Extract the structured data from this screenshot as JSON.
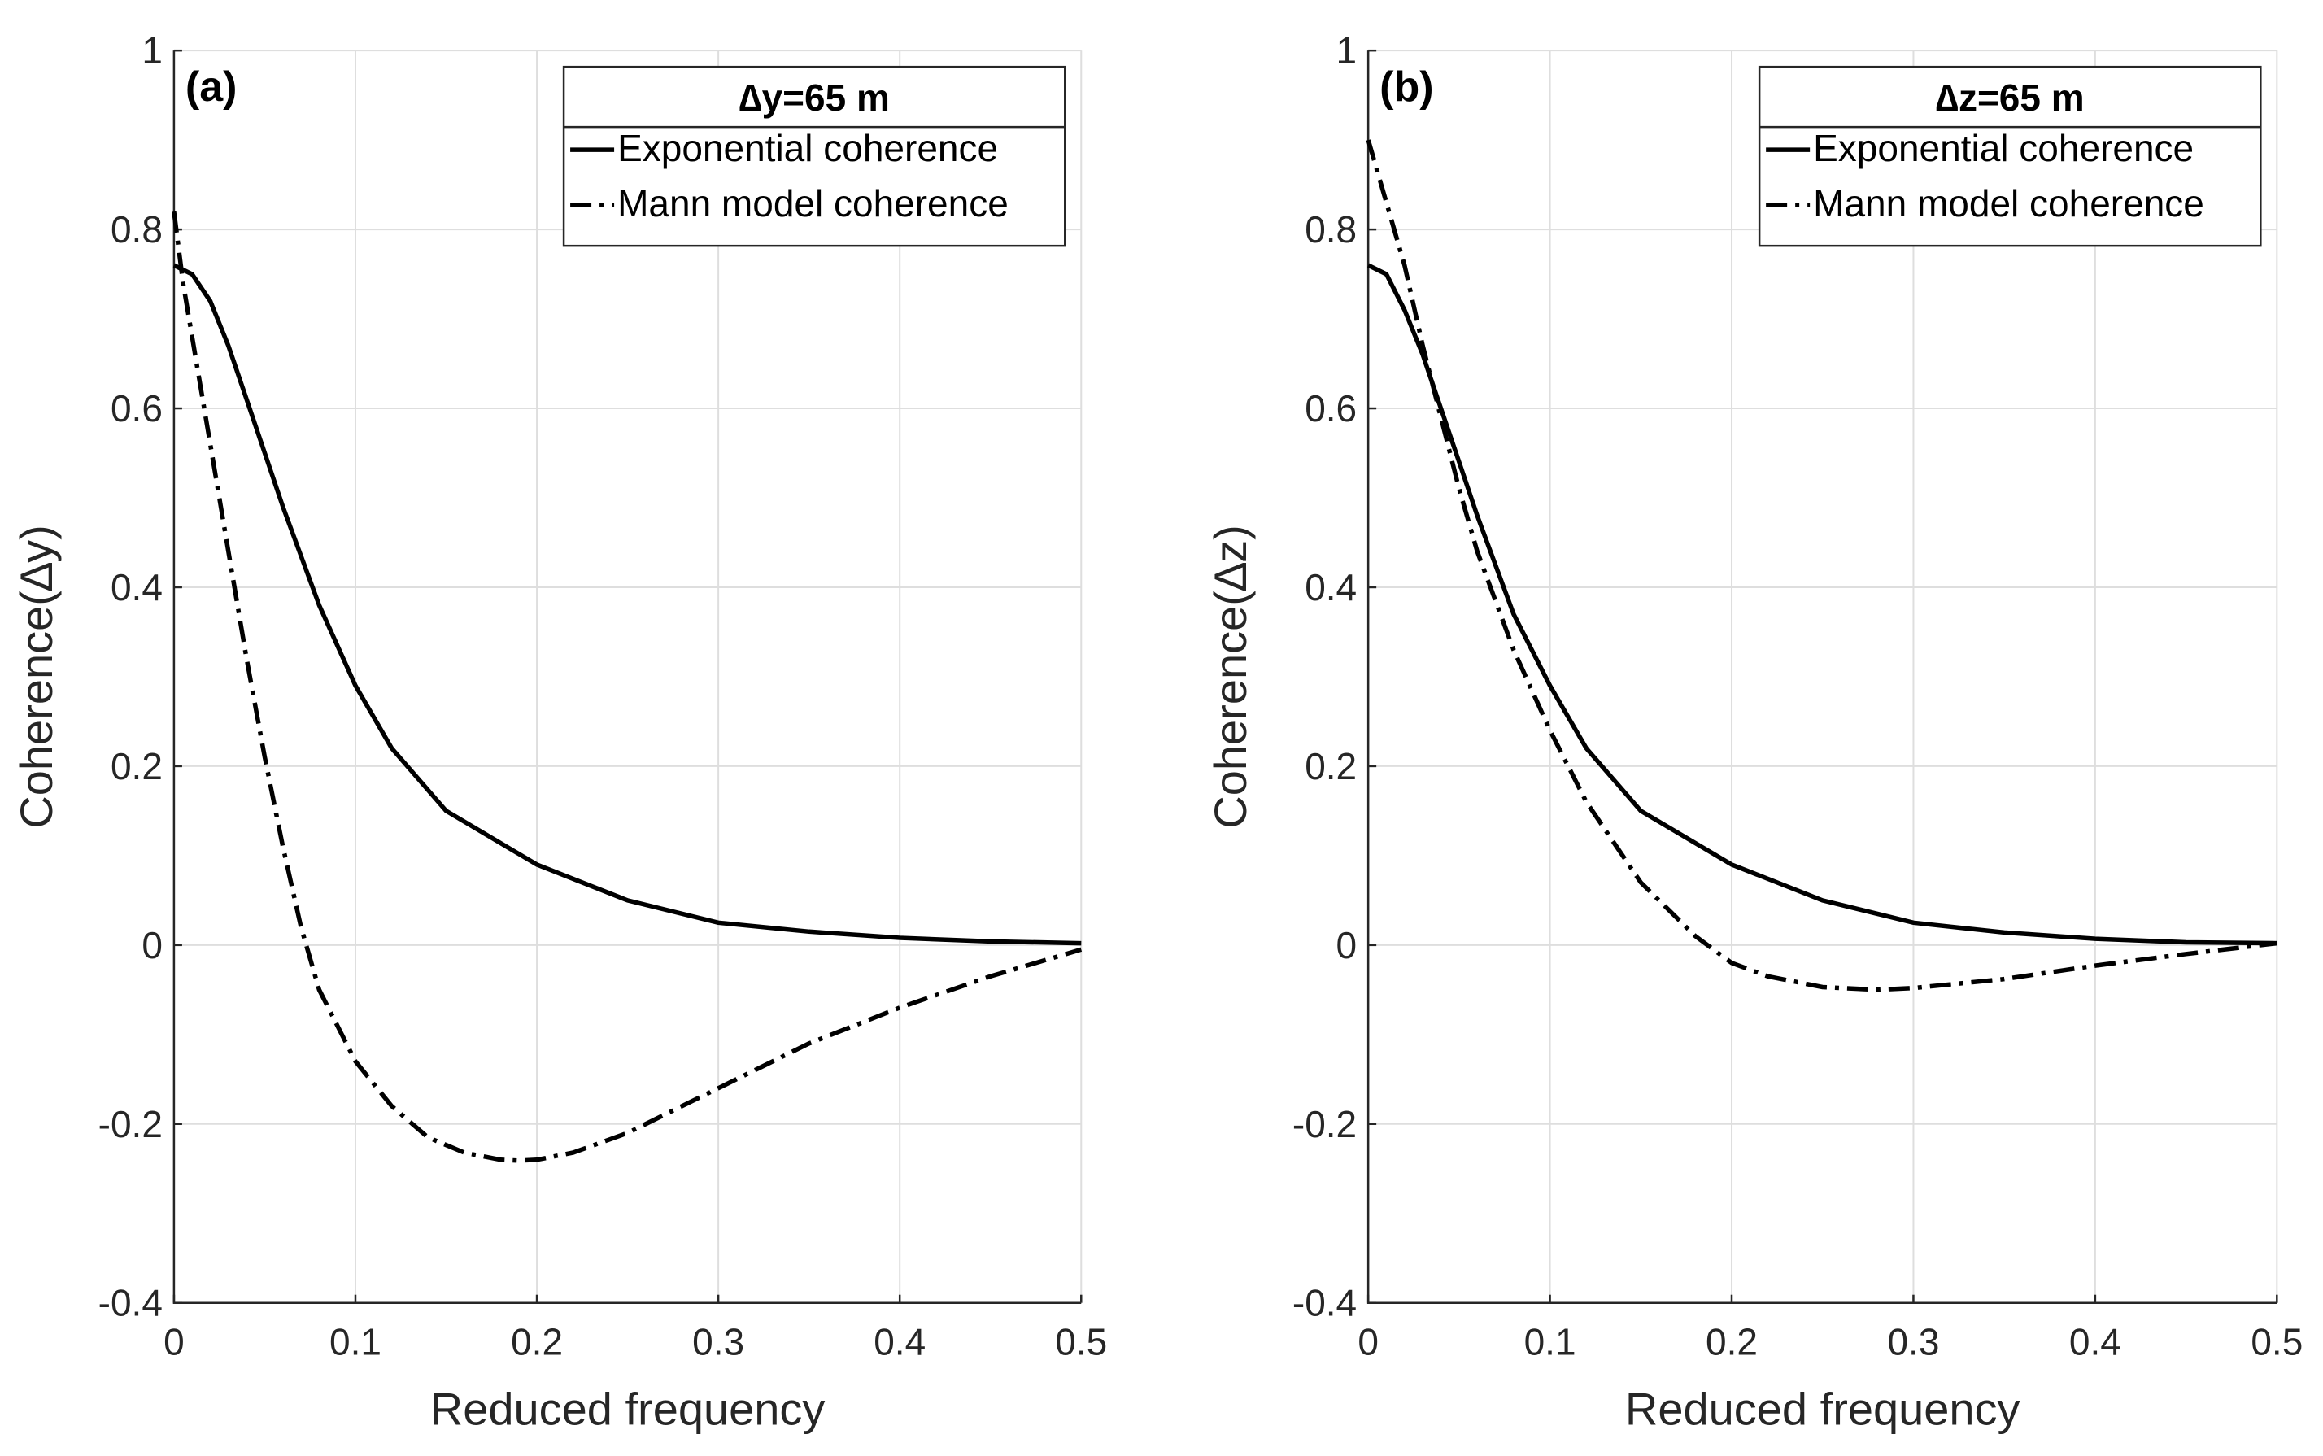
{
  "chart_data": [
    {
      "type": "line",
      "panel_label": "(a)",
      "xlabel": "Reduced frequency",
      "ylabel": "Coherence(∆y)",
      "xlim": [
        0,
        0.5
      ],
      "ylim": [
        -0.4,
        1
      ],
      "xticks": [
        "0",
        "0.1",
        "0.2",
        "0.3",
        "0.4",
        "0.5"
      ],
      "yticks": [
        "-0.4",
        "-0.2",
        "0",
        "0.2",
        "0.4",
        "0.6",
        "0.8",
        "1"
      ],
      "grid": true,
      "legend": {
        "title": "∆y=65 m",
        "placement": "top-right",
        "entries": [
          "Exponential coherence",
          "Mann model coherence"
        ]
      },
      "series": [
        {
          "name": "Exponential coherence",
          "style": "solid",
          "x": [
            0,
            0.01,
            0.02,
            0.03,
            0.04,
            0.05,
            0.06,
            0.08,
            0.1,
            0.12,
            0.15,
            0.2,
            0.25,
            0.3,
            0.35,
            0.4,
            0.45,
            0.5
          ],
          "y": [
            0.76,
            0.75,
            0.72,
            0.67,
            0.61,
            0.55,
            0.49,
            0.38,
            0.29,
            0.22,
            0.15,
            0.09,
            0.05,
            0.025,
            0.015,
            0.008,
            0.004,
            0.002
          ]
        },
        {
          "name": "Mann model coherence",
          "style": "dashdot",
          "x": [
            0,
            0.005,
            0.01,
            0.02,
            0.03,
            0.04,
            0.05,
            0.06,
            0.07,
            0.08,
            0.1,
            0.12,
            0.14,
            0.16,
            0.18,
            0.19,
            0.2,
            0.22,
            0.25,
            0.3,
            0.35,
            0.4,
            0.45,
            0.5
          ],
          "y": [
            0.82,
            0.74,
            0.68,
            0.56,
            0.44,
            0.32,
            0.21,
            0.11,
            0.02,
            -0.05,
            -0.13,
            -0.18,
            -0.215,
            -0.232,
            -0.24,
            -0.241,
            -0.24,
            -0.232,
            -0.21,
            -0.16,
            -0.11,
            -0.07,
            -0.035,
            -0.005
          ]
        }
      ]
    },
    {
      "type": "line",
      "panel_label": "(b)",
      "xlabel": "Reduced frequency",
      "ylabel": "Coherence(∆z)",
      "xlim": [
        0,
        0.5
      ],
      "ylim": [
        -0.4,
        1
      ],
      "xticks": [
        "0",
        "0.1",
        "0.2",
        "0.3",
        "0.4",
        "0.5"
      ],
      "yticks": [
        "-0.4",
        "-0.2",
        "0",
        "0.2",
        "0.4",
        "0.6",
        "0.8",
        "1"
      ],
      "grid": true,
      "legend": {
        "title": "∆z=65 m",
        "placement": "top-right",
        "entries": [
          "Exponential coherence",
          "Mann model coherence"
        ]
      },
      "series": [
        {
          "name": "Exponential coherence",
          "style": "solid",
          "x": [
            0,
            0.01,
            0.02,
            0.03,
            0.04,
            0.05,
            0.06,
            0.08,
            0.1,
            0.12,
            0.15,
            0.2,
            0.25,
            0.3,
            0.35,
            0.4,
            0.45,
            0.5
          ],
          "y": [
            0.76,
            0.75,
            0.71,
            0.66,
            0.6,
            0.54,
            0.48,
            0.37,
            0.29,
            0.22,
            0.15,
            0.09,
            0.05,
            0.025,
            0.014,
            0.007,
            0.003,
            0.002
          ]
        },
        {
          "name": "Mann model coherence",
          "style": "dashdot",
          "x": [
            0,
            0.01,
            0.02,
            0.03,
            0.04,
            0.05,
            0.06,
            0.08,
            0.1,
            0.12,
            0.15,
            0.18,
            0.2,
            0.22,
            0.25,
            0.28,
            0.3,
            0.35,
            0.4,
            0.45,
            0.5
          ],
          "y": [
            0.9,
            0.83,
            0.76,
            0.67,
            0.59,
            0.51,
            0.44,
            0.33,
            0.24,
            0.16,
            0.07,
            0.01,
            -0.02,
            -0.035,
            -0.047,
            -0.05,
            -0.048,
            -0.038,
            -0.023,
            -0.01,
            0.002
          ]
        }
      ]
    }
  ]
}
